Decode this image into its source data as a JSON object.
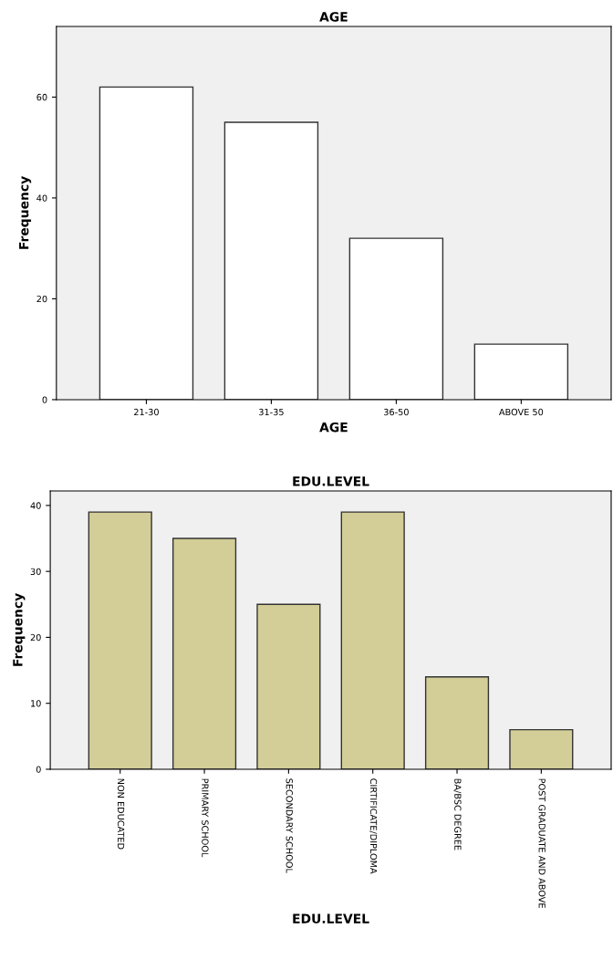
{
  "chart_data": [
    {
      "type": "bar",
      "title": "AGE",
      "xlabel": "AGE",
      "ylabel": "Frequency",
      "categories": [
        "21-30",
        "31-35",
        "36-50",
        "ABOVE 50"
      ],
      "values": [
        62,
        55,
        32,
        11
      ],
      "color": "#ffffff",
      "ylim": [
        0,
        74
      ],
      "yticks": [
        0,
        20,
        40,
        60
      ],
      "grid": false
    },
    {
      "type": "bar",
      "title": "EDU.LEVEL",
      "xlabel": "EDU.LEVEL",
      "ylabel": "Frequency",
      "categories": [
        "NON EDUCATED",
        "PRIMARY SCHOOL",
        "SECONDARY SCHOOL",
        "CIRTIFICATE/DIPLOMA",
        "BA/BSC DEGREE",
        "POST GRADUATE AND ABOVE"
      ],
      "values": [
        39,
        35,
        25,
        39,
        14,
        6
      ],
      "color": "#d3ce97",
      "ylim": [
        0,
        42.2
      ],
      "yticks": [
        0,
        10,
        20,
        30,
        40
      ],
      "grid": false
    }
  ]
}
